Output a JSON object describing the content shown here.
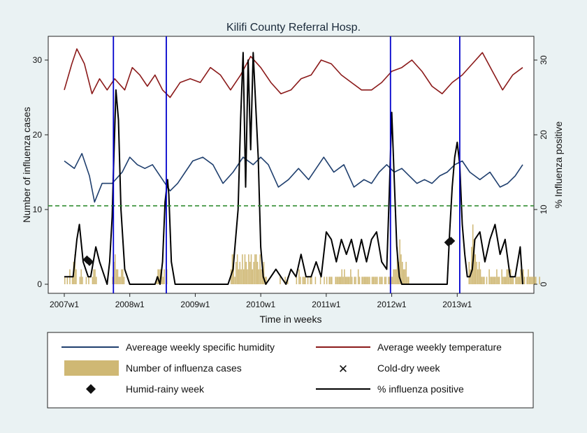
{
  "chart_data": {
    "type": "line",
    "title": "Kilifi County Referral Hosp.",
    "xlabel": "Time in weeks",
    "ylabel_left": "Number of influenza cases",
    "ylabel_right": "% Influenza positive",
    "x_ticks": [
      "2007w1",
      "2008w1",
      "2009w1",
      "2010w1",
      "2011w1",
      "2012w1",
      "2013w1"
    ],
    "x_tick_index": [
      0,
      52,
      104,
      156,
      208,
      260,
      312
    ],
    "xlim": [
      0,
      364
    ],
    "ylim_left": [
      0,
      32
    ],
    "ylim_right": [
      0,
      32
    ],
    "y_ticks_left": [
      0,
      10,
      20,
      30
    ],
    "y_ticks_right": [
      0,
      10,
      20,
      30
    ],
    "reference_line": {
      "value": 10.5,
      "color": "#2e8b2e",
      "style": "dashed"
    },
    "vertical_markers": [
      39,
      81,
      259,
      314
    ],
    "legend_position": "bottom",
    "colors": {
      "humidity": "#1f3f6e",
      "temperature": "#8b1a1a",
      "cases": "#cfb874",
      "pct_positive": "#000000",
      "markers": "#0000cc",
      "plot_bg": "#ffffff",
      "page_bg": "#eaf2f3"
    },
    "series": [
      {
        "name": "Avereage weekly specific humidity",
        "key": "humidity",
        "x": [
          0,
          8,
          14,
          20,
          24,
          30,
          38,
          46,
          52,
          58,
          64,
          70,
          78,
          84,
          90,
          96,
          102,
          110,
          118,
          126,
          134,
          142,
          150,
          156,
          162,
          170,
          178,
          186,
          194,
          200,
          206,
          214,
          222,
          230,
          238,
          244,
          250,
          256,
          262,
          268,
          274,
          280,
          286,
          292,
          298,
          304,
          310,
          316,
          322,
          330,
          338,
          346,
          352,
          358,
          364
        ],
        "y": [
          16.5,
          15.5,
          17.5,
          14.5,
          11,
          13.5,
          13.5,
          15,
          17,
          16,
          15.5,
          16,
          14,
          12.5,
          13.5,
          15,
          16.5,
          17,
          16,
          13.5,
          15,
          17,
          16,
          17,
          16,
          13,
          14,
          15.5,
          14,
          15.5,
          17,
          15,
          16,
          13,
          14,
          13.5,
          15,
          16,
          15,
          15.5,
          14.5,
          13.5,
          14,
          13.5,
          14.5,
          15,
          16,
          16.5,
          15,
          14,
          15,
          13,
          13.5,
          14.5,
          16
        ]
      },
      {
        "name": "Average weekly temperature",
        "key": "temperature",
        "x": [
          0,
          6,
          10,
          16,
          22,
          28,
          34,
          40,
          48,
          54,
          60,
          66,
          72,
          78,
          84,
          92,
          100,
          108,
          116,
          124,
          132,
          140,
          148,
          156,
          164,
          172,
          180,
          188,
          196,
          204,
          212,
          220,
          228,
          236,
          244,
          252,
          260,
          268,
          276,
          284,
          292,
          300,
          308,
          316,
          324,
          332,
          340,
          348,
          356,
          364
        ],
        "y": [
          26,
          29.5,
          31.5,
          29.5,
          25.5,
          27.5,
          26,
          27.5,
          26,
          29,
          28,
          26.5,
          28,
          26,
          25,
          27,
          27.5,
          27,
          29,
          28,
          26,
          28,
          30.5,
          29,
          27,
          25.5,
          26,
          27.5,
          28,
          30,
          29.5,
          28,
          27,
          26,
          26,
          27,
          28.5,
          29,
          30,
          28.5,
          26.5,
          25.5,
          27,
          28,
          29.5,
          31,
          28.5,
          26,
          28,
          29
        ]
      },
      {
        "name": "% influenza positive",
        "key": "pct_positive",
        "x": [
          0,
          3,
          7,
          10,
          12,
          15,
          17,
          19,
          21,
          23,
          25,
          28,
          32,
          34,
          36,
          38,
          39,
          41,
          43,
          45,
          48,
          52,
          56,
          60,
          64,
          68,
          72,
          74,
          76,
          78,
          80,
          82,
          83,
          85,
          88,
          92,
          96,
          100,
          106,
          112,
          120,
          126,
          130,
          134,
          138,
          140,
          142,
          144,
          146,
          148,
          150,
          152,
          154,
          156,
          158,
          160,
          164,
          168,
          172,
          176,
          180,
          184,
          188,
          192,
          196,
          200,
          204,
          208,
          212,
          216,
          220,
          224,
          228,
          232,
          236,
          240,
          244,
          248,
          252,
          256,
          258,
          260,
          262,
          264,
          266,
          268,
          270,
          272,
          274,
          278,
          284,
          290,
          298,
          304,
          306,
          308,
          310,
          312,
          314,
          316,
          318,
          320,
          322,
          324,
          326,
          330,
          334,
          338,
          342,
          346,
          350,
          354,
          358,
          362,
          364
        ],
        "y": [
          1,
          1,
          1,
          6,
          8,
          3,
          2,
          1,
          1,
          3,
          5,
          3,
          1,
          0,
          3,
          9,
          15,
          26,
          22,
          10,
          2,
          0,
          0,
          0,
          0,
          0,
          0,
          1,
          0,
          3,
          11,
          14,
          12,
          3,
          0,
          0,
          0,
          0,
          0,
          0,
          0,
          0,
          0,
          2,
          10,
          22,
          31,
          13,
          30,
          18,
          31,
          24,
          17,
          5,
          1,
          0,
          1,
          2,
          1,
          0,
          2,
          1,
          4,
          1,
          1,
          3,
          1,
          7,
          6,
          3,
          6,
          4,
          6,
          3,
          6,
          3,
          6,
          7,
          3,
          2,
          12,
          23,
          14,
          5,
          1,
          0,
          0,
          0,
          0,
          0,
          0,
          0,
          0,
          0,
          7,
          13,
          17,
          19,
          16,
          8,
          4,
          1,
          1,
          2,
          6,
          7,
          3,
          6,
          8,
          4,
          6,
          1,
          1,
          5,
          0
        ]
      }
    ],
    "bars": {
      "name": "Number of influenza cases",
      "key": "cases",
      "values": [
        1,
        0,
        1,
        0,
        2,
        0,
        1,
        3,
        4,
        2,
        0,
        0,
        1,
        2,
        1,
        0,
        0,
        1,
        0,
        1,
        0,
        0,
        1,
        2,
        2,
        1,
        0,
        0,
        0,
        0,
        0,
        0,
        0,
        0,
        0,
        0,
        0,
        0,
        1,
        3,
        4,
        2,
        2,
        1,
        1,
        2,
        2,
        1,
        0,
        0,
        0,
        0,
        0,
        0,
        0,
        0,
        0,
        0,
        0,
        0,
        0,
        0,
        0,
        0,
        0,
        0,
        0,
        0,
        0,
        0,
        0,
        0,
        0,
        1,
        2,
        2,
        2,
        2,
        1,
        2,
        0,
        2,
        0,
        0,
        0,
        0,
        0,
        0,
        0,
        0,
        0,
        0,
        0,
        0,
        0,
        0,
        0,
        0,
        0,
        0,
        0,
        0,
        0,
        0,
        0,
        0,
        0,
        0,
        0,
        0,
        0,
        0,
        0,
        0,
        0,
        0,
        0,
        0,
        0,
        0,
        0,
        0,
        0,
        0,
        0,
        0,
        0,
        0,
        0,
        0,
        0,
        0,
        2,
        4,
        4,
        1,
        3,
        4,
        2,
        3,
        2,
        4,
        2,
        4,
        3,
        2,
        4,
        3,
        4,
        2,
        3,
        4,
        4,
        3,
        2,
        4,
        2,
        2,
        3,
        1,
        1,
        0,
        0,
        0,
        0,
        0,
        0,
        0,
        0,
        0,
        0,
        1,
        0,
        0,
        0,
        1,
        0,
        1,
        0,
        0,
        0,
        0,
        0,
        0,
        1,
        0,
        2,
        1,
        0,
        1,
        1,
        1,
        0,
        1,
        0,
        1,
        1,
        0,
        0,
        1,
        0,
        0,
        0,
        1,
        0,
        0,
        1,
        0,
        1,
        0,
        1,
        1,
        1,
        0,
        0,
        1,
        1,
        1,
        1,
        1,
        2,
        1,
        2,
        1,
        1,
        1,
        1,
        2,
        1,
        0,
        1,
        1,
        0,
        2,
        1,
        0,
        1,
        1,
        1,
        1,
        1,
        1,
        1,
        0,
        1,
        1,
        1,
        1,
        1,
        0,
        1,
        1,
        1,
        0,
        1,
        1,
        0,
        1,
        1,
        1,
        1,
        2,
        2,
        2,
        5,
        3,
        6,
        4,
        3,
        2,
        2,
        3,
        1,
        1,
        0,
        0,
        0,
        0,
        0,
        0,
        0,
        0,
        0,
        0,
        0,
        0,
        0,
        0,
        0,
        0,
        0,
        0,
        0,
        0,
        0,
        0,
        0,
        0,
        0,
        0,
        0,
        0,
        0,
        0,
        0,
        0,
        0,
        0,
        0,
        0,
        0,
        0,
        0,
        0,
        0,
        0,
        0,
        0,
        0,
        0,
        0,
        3,
        2,
        5,
        8,
        6,
        4,
        3,
        2,
        3,
        2,
        1,
        1,
        1,
        0,
        1,
        0,
        2,
        1,
        1,
        1,
        1,
        1,
        2,
        1,
        1,
        0,
        2,
        1,
        1,
        1,
        2,
        2,
        1,
        2,
        1,
        1,
        0,
        1,
        1,
        1,
        1,
        2,
        1,
        2,
        1,
        0,
        1,
        2,
        1,
        1,
        1,
        1,
        1,
        1,
        0,
        0,
        1,
        0,
        0
      ]
    },
    "humid_rainy_weeks": {
      "x": [
        18,
        20,
        305,
        307
      ],
      "y": [
        3.3,
        3.0,
        5.6,
        5.8
      ]
    },
    "legend": {
      "humidity": "Avereage weekly specific humidity",
      "temperature": "Average weekly temperature",
      "cases": "Number of influenza cases",
      "cold_dry": "Cold-dry week",
      "humid_rainy": "Humid-rainy week",
      "pct_positive": "% influenza positive"
    }
  }
}
